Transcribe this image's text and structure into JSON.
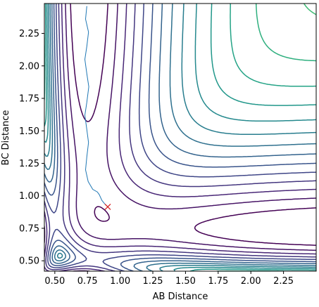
{
  "chart_data": {
    "type": "contour",
    "title": "",
    "xlabel": "AB Distance",
    "ylabel": "BC Distance",
    "xlim": [
      0.42,
      2.5
    ],
    "ylim": [
      0.42,
      2.48
    ],
    "x_ticks": [
      0.5,
      0.75,
      1.0,
      1.25,
      1.5,
      1.75,
      2.0,
      2.25
    ],
    "x_tick_labels": [
      "0.50",
      "0.75",
      "1.00",
      "1.25",
      "1.50",
      "1.75",
      "2.00",
      "2.25"
    ],
    "y_ticks": [
      0.5,
      0.75,
      1.0,
      1.25,
      1.5,
      1.75,
      2.0,
      2.25
    ],
    "y_tick_labels": [
      "0.50",
      "0.75",
      "1.00",
      "1.25",
      "1.50",
      "1.75",
      "2.00",
      "2.25"
    ],
    "grid": false,
    "colormap": "viridis",
    "contour_levels": 20,
    "trajectory": {
      "color": "#1f77b4",
      "points": [
        [
          0.745,
          2.46
        ],
        [
          0.735,
          2.36
        ],
        [
          0.758,
          2.26
        ],
        [
          0.745,
          2.15
        ],
        [
          0.73,
          2.05
        ],
        [
          0.745,
          1.94
        ],
        [
          0.76,
          1.84
        ],
        [
          0.745,
          1.72
        ],
        [
          0.73,
          1.62
        ],
        [
          0.745,
          1.51
        ],
        [
          0.758,
          1.41
        ],
        [
          0.745,
          1.3
        ],
        [
          0.735,
          1.2
        ],
        [
          0.755,
          1.11
        ],
        [
          0.79,
          1.05
        ],
        [
          0.825,
          1.03
        ],
        [
          0.84,
          1.01
        ],
        [
          0.86,
          0.965
        ],
        [
          0.88,
          0.94
        ],
        [
          0.905,
          0.915
        ]
      ]
    },
    "marker": {
      "shape": "x",
      "color": "#d62728",
      "x": 0.905,
      "y": 0.915
    }
  }
}
